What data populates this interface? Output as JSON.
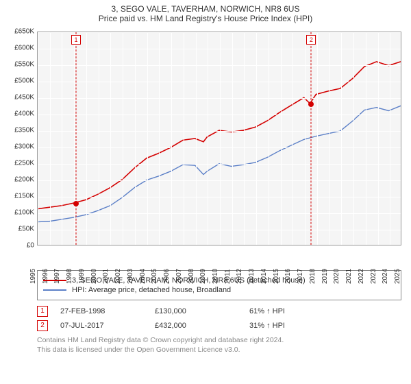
{
  "title": "3, SEGO VALE, TAVERHAM, NORWICH, NR8 6US",
  "subtitle": "Price paid vs. HM Land Registry's House Price Index (HPI)",
  "chart": {
    "type": "line",
    "background_color": "#f5f5f5",
    "grid_color": "#ffffff",
    "plot_border_color": "#999999",
    "font_size_ticks": 10,
    "x": {
      "min": 1995,
      "max": 2025,
      "ticks": [
        1995,
        1996,
        1997,
        1998,
        1999,
        2000,
        2001,
        2002,
        2003,
        2004,
        2005,
        2006,
        2007,
        2008,
        2009,
        2010,
        2011,
        2012,
        2013,
        2014,
        2015,
        2016,
        2017,
        2018,
        2019,
        2020,
        2021,
        2022,
        2023,
        2024,
        2025
      ]
    },
    "y": {
      "min": 0,
      "max": 650000,
      "step": 50000,
      "prefix": "£",
      "suffix": "K",
      "ticks": [
        0,
        50000,
        100000,
        150000,
        200000,
        250000,
        300000,
        350000,
        400000,
        450000,
        500000,
        550000,
        600000,
        650000
      ]
    },
    "series": [
      {
        "name": "price_paid",
        "color": "#d40000",
        "width": 1.6,
        "points": [
          [
            1995,
            110000
          ],
          [
            1996,
            115000
          ],
          [
            1997,
            120000
          ],
          [
            1998,
            128000
          ],
          [
            1999,
            138000
          ],
          [
            2000,
            155000
          ],
          [
            2001,
            175000
          ],
          [
            2002,
            200000
          ],
          [
            2003,
            235000
          ],
          [
            2004,
            265000
          ],
          [
            2005,
            280000
          ],
          [
            2006,
            298000
          ],
          [
            2007,
            320000
          ],
          [
            2008,
            325000
          ],
          [
            2008.7,
            315000
          ],
          [
            2009,
            330000
          ],
          [
            2010,
            350000
          ],
          [
            2011,
            345000
          ],
          [
            2012,
            350000
          ],
          [
            2013,
            360000
          ],
          [
            2014,
            380000
          ],
          [
            2015,
            405000
          ],
          [
            2016,
            428000
          ],
          [
            2017,
            450000
          ],
          [
            2017.5,
            432000
          ],
          [
            2018,
            460000
          ],
          [
            2019,
            470000
          ],
          [
            2020,
            478000
          ],
          [
            2021,
            508000
          ],
          [
            2022,
            545000
          ],
          [
            2023,
            560000
          ],
          [
            2024,
            548000
          ],
          [
            2025,
            560000
          ]
        ]
      },
      {
        "name": "hpi",
        "color": "#5b7fc7",
        "width": 1.4,
        "points": [
          [
            1995,
            70000
          ],
          [
            1996,
            72000
          ],
          [
            1997,
            78000
          ],
          [
            1998,
            84000
          ],
          [
            1999,
            92000
          ],
          [
            2000,
            105000
          ],
          [
            2001,
            120000
          ],
          [
            2002,
            145000
          ],
          [
            2003,
            175000
          ],
          [
            2004,
            198000
          ],
          [
            2005,
            210000
          ],
          [
            2006,
            225000
          ],
          [
            2007,
            245000
          ],
          [
            2008,
            243000
          ],
          [
            2008.7,
            215000
          ],
          [
            2009,
            225000
          ],
          [
            2010,
            248000
          ],
          [
            2011,
            240000
          ],
          [
            2012,
            245000
          ],
          [
            2013,
            252000
          ],
          [
            2014,
            268000
          ],
          [
            2015,
            288000
          ],
          [
            2016,
            305000
          ],
          [
            2017,
            322000
          ],
          [
            2018,
            332000
          ],
          [
            2019,
            340000
          ],
          [
            2020,
            348000
          ],
          [
            2021,
            378000
          ],
          [
            2022,
            412000
          ],
          [
            2023,
            420000
          ],
          [
            2024,
            410000
          ],
          [
            2025,
            425000
          ]
        ]
      }
    ],
    "markers": [
      {
        "n": "1",
        "x": 1998.16,
        "y": 130000,
        "color": "#d40000"
      },
      {
        "n": "2",
        "x": 2017.52,
        "y": 432000,
        "color": "#d40000"
      }
    ]
  },
  "legend": {
    "rows": [
      {
        "color": "#d40000",
        "label": "3, SEGO VALE, TAVERHAM, NORWICH, NR8 6US (detached house)"
      },
      {
        "color": "#5b7fc7",
        "label": "HPI: Average price, detached house, Broadland"
      }
    ]
  },
  "events": [
    {
      "n": "1",
      "color": "#d40000",
      "date": "27-FEB-1998",
      "price": "£130,000",
      "delta": "61% ↑ HPI"
    },
    {
      "n": "2",
      "color": "#d40000",
      "date": "07-JUL-2017",
      "price": "£432,000",
      "delta": "31% ↑ HPI"
    }
  ],
  "footer": {
    "l1": "Contains HM Land Registry data © Crown copyright and database right 2024.",
    "l2": "This data is licensed under the Open Government Licence v3.0."
  }
}
